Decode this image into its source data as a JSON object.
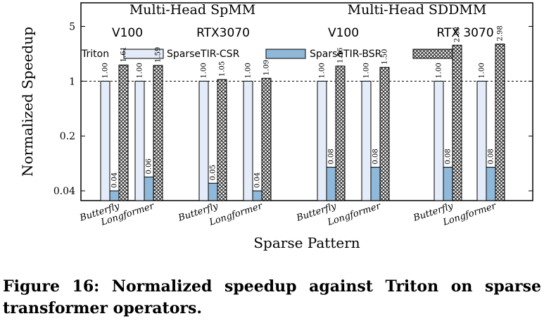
{
  "caption": "Figure 16: Normalized speedup against Triton on sparse transformer operators.",
  "chart_data": {
    "type": "bar",
    "ylabel": "Normalized Speedup",
    "xlabel": "Sparse Pattern",
    "yscale": "log",
    "ylim": [
      0.03,
      10
    ],
    "yticks": [
      0.04,
      0.2,
      1,
      5
    ],
    "ytick_labels": [
      "0.04",
      "0.2",
      "1",
      "5"
    ],
    "reference_line": 1,
    "legend_position": "top",
    "legend": [
      "Triton",
      "SparseTIR-CSR",
      "SparseTIR-BSR"
    ],
    "groups": [
      {
        "title": "Multi-Head SpMM",
        "subgroups": [
          "V100",
          "RTX3070"
        ]
      },
      {
        "title": "Multi-Head SDDMM",
        "subgroups": [
          "V100",
          "RTX 3070"
        ]
      }
    ],
    "categories": [
      "Butterfly",
      "Longformer",
      "Butterfly",
      "Longformer",
      "Butterfly",
      "Longformer",
      "Butterfly",
      "Longformer"
    ],
    "series": [
      {
        "name": "Triton",
        "color": "#e3ecf8",
        "pattern": "solid",
        "values": [
          1.0,
          1.0,
          1.0,
          1.0,
          1.0,
          1.0,
          1.0,
          1.0
        ],
        "labels": [
          "1.00",
          "1.00",
          "1.00",
          "1.00",
          "1.00",
          "1.00",
          "1.00",
          "1.00"
        ]
      },
      {
        "name": "SparseTIR-CSR",
        "color": "#8fb8d9",
        "pattern": "solid",
        "values": [
          0.04,
          0.06,
          0.05,
          0.04,
          0.08,
          0.08,
          0.08,
          0.08
        ],
        "labels": [
          "0.04",
          "0.06",
          "0.05",
          "0.04",
          "0.08",
          "0.08",
          "0.08",
          "0.08"
        ]
      },
      {
        "name": "SparseTIR-BSR",
        "color": "#333333",
        "pattern": "crosshatch",
        "values": [
          1.61,
          1.59,
          1.05,
          1.09,
          1.56,
          1.5,
          2.88,
          2.98
        ],
        "labels": [
          "1.61",
          "1.59",
          "1.05",
          "1.09",
          "1.56",
          "1.50",
          "2.88",
          "2.98"
        ]
      }
    ]
  }
}
